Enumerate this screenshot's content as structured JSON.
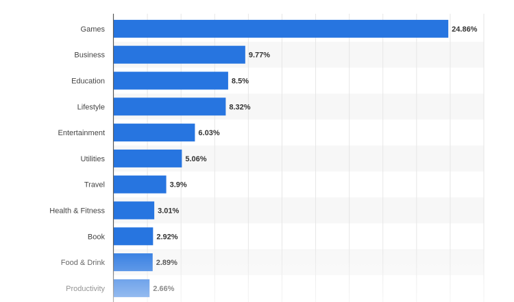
{
  "chart_data": {
    "type": "bar",
    "orientation": "horizontal",
    "categories": [
      "Games",
      "Business",
      "Education",
      "Lifestyle",
      "Entertainment",
      "Utilities",
      "Travel",
      "Health & Fitness",
      "Book",
      "Food & Drink",
      "Productivity"
    ],
    "values": [
      24.86,
      9.77,
      8.5,
      8.32,
      6.03,
      5.06,
      3.9,
      3.01,
      2.92,
      2.89,
      2.66
    ],
    "value_labels": [
      "24.86%",
      "9.77%",
      "8.5%",
      "8.32%",
      "6.03%",
      "5.06%",
      "3.9%",
      "3.01%",
      "2.92%",
      "2.89%",
      "2.66%"
    ],
    "xlim": [
      0,
      27.5
    ],
    "grid": true,
    "bar_color": "#2775e0",
    "band_color": "#f7f7f7",
    "grid_color": "#e6e6e6"
  }
}
